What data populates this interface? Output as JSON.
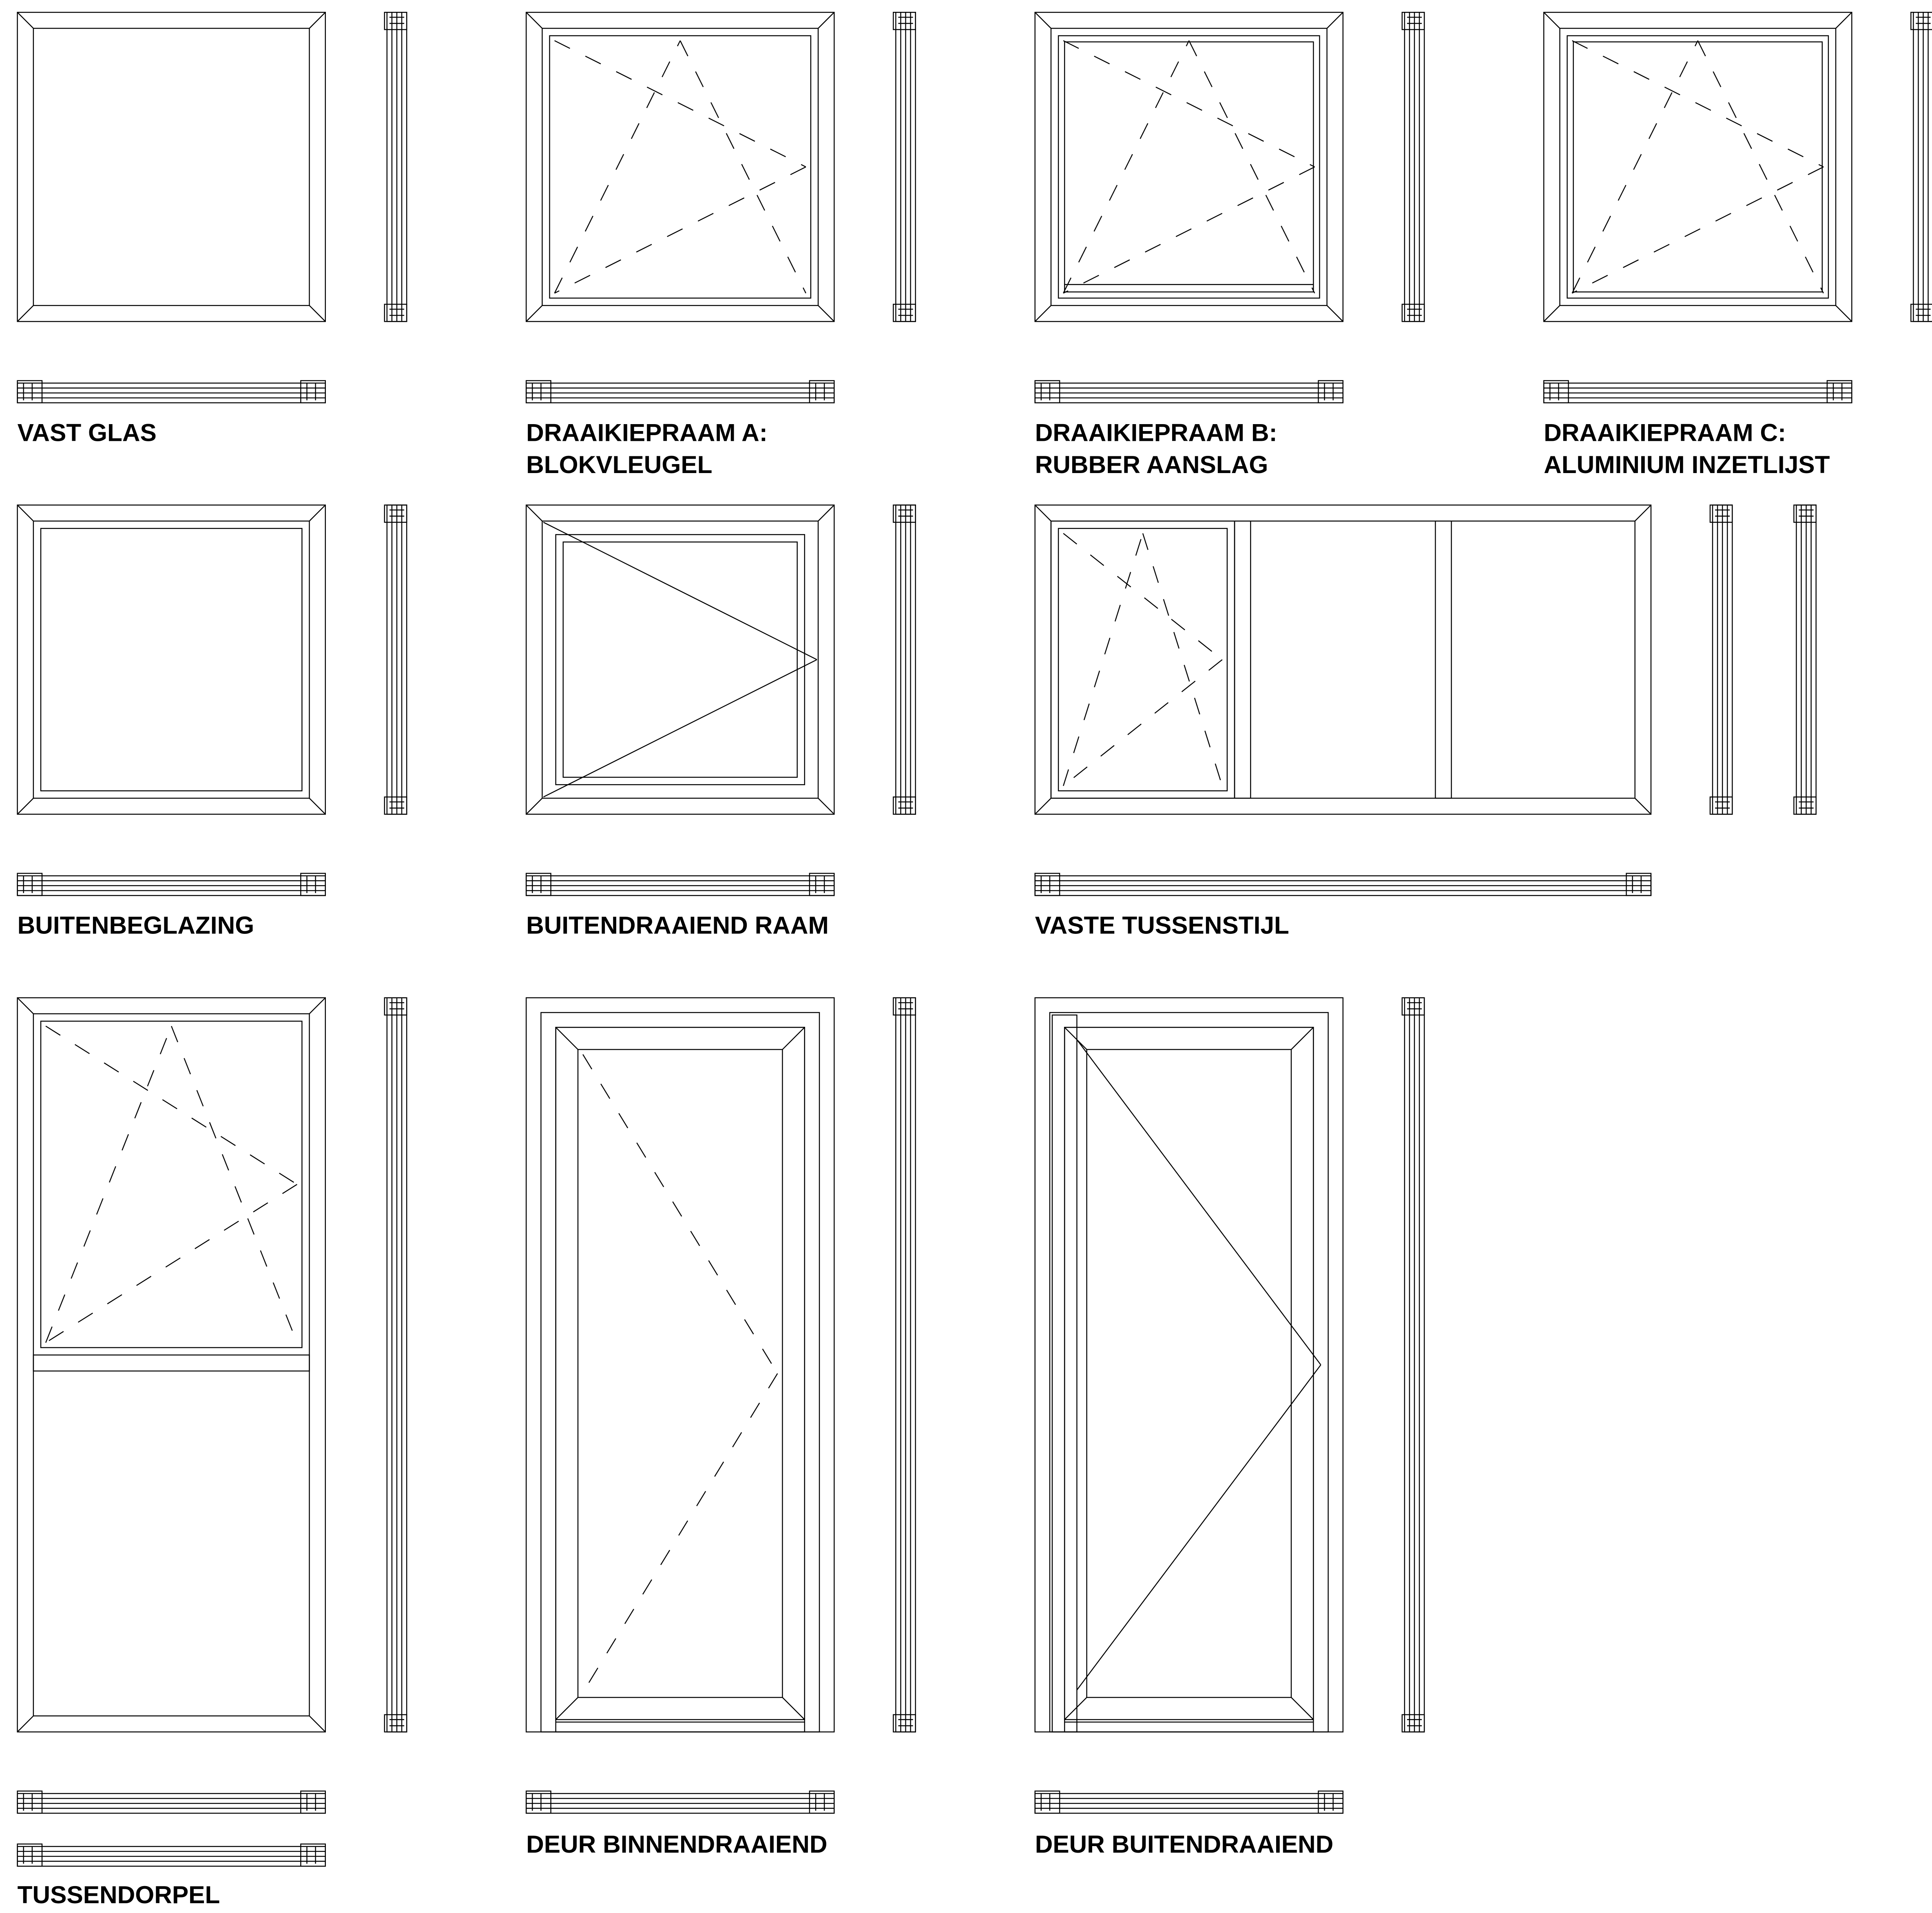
{
  "items": [
    {
      "lines": [
        "VAST GLAS"
      ]
    },
    {
      "lines": [
        "DRAAIKIEPRAAM A:",
        "BLOKVLEUGEL"
      ]
    },
    {
      "lines": [
        "DRAAIKIEPRAAM B:",
        "RUBBER AANSLAG"
      ]
    },
    {
      "lines": [
        "DRAAIKIEPRAAM C:",
        "ALUMINIUM INZETLIJST"
      ]
    },
    {
      "lines": [
        "BUITENBEGLAZING"
      ]
    },
    {
      "lines": [
        "BUITENDRAAIEND RAAM"
      ]
    },
    {
      "lines": [
        "VASTE TUSSENSTIJL"
      ]
    },
    {
      "lines": [
        "TUSSENDORPEL"
      ]
    },
    {
      "lines": [
        "DEUR BINNENDRAAIEND"
      ]
    },
    {
      "lines": [
        "DEUR BUITENDRAAIEND"
      ]
    }
  ]
}
